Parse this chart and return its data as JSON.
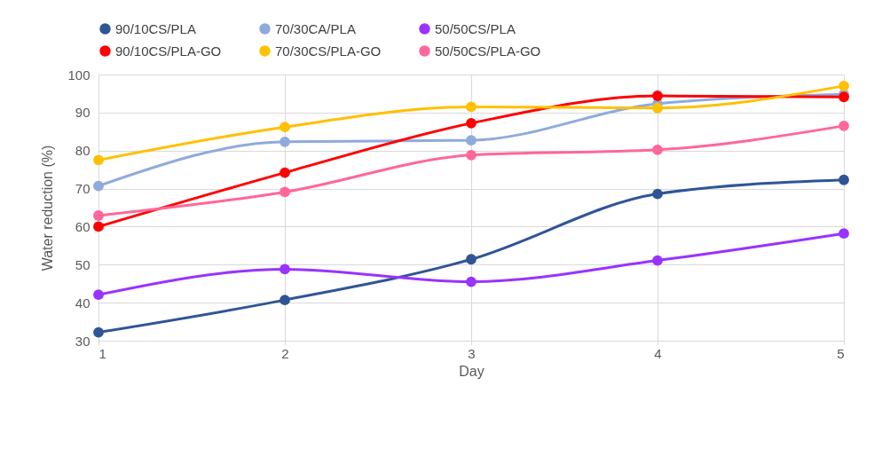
{
  "chart_data": {
    "type": "line",
    "xlabel": "Day",
    "ylabel": "Water reduction (%)",
    "x": [
      1,
      2,
      3,
      4,
      5
    ],
    "xlim": [
      1,
      5
    ],
    "xticks": [
      1,
      2,
      3,
      4,
      5
    ],
    "ylim": [
      30,
      100
    ],
    "yticks": [
      30,
      40,
      50,
      60,
      70,
      80,
      90,
      100
    ],
    "grid": true,
    "legend": "top",
    "marker": "circle",
    "line_style": "solid",
    "series": [
      {
        "name": "90/10CS/PLA",
        "color": "#2f5597",
        "values": [
          32.2,
          40.7,
          51.4,
          68.6,
          72.3
        ]
      },
      {
        "name": "70/30CA/PLA",
        "color": "#8faadc",
        "values": [
          70.7,
          82.3,
          82.7,
          92.3,
          94.8
        ]
      },
      {
        "name": "50/50CS/PLA",
        "color": "#9933ff",
        "values": [
          42.1,
          48.8,
          45.5,
          51.1,
          58.2
        ]
      },
      {
        "name": "90/10CS/PLA-GO",
        "color": "#ff0000",
        "values": [
          60.0,
          74.2,
          87.2,
          94.4,
          94.1
        ]
      },
      {
        "name": "70/30CS/PLA-GO",
        "color": "#ffc000",
        "values": [
          77.5,
          86.2,
          91.5,
          91.2,
          97.0
        ]
      },
      {
        "name": "50/50CS/PLA-GO",
        "color": "#ff6699",
        "values": [
          62.9,
          69.1,
          78.8,
          80.2,
          86.5
        ]
      }
    ]
  }
}
